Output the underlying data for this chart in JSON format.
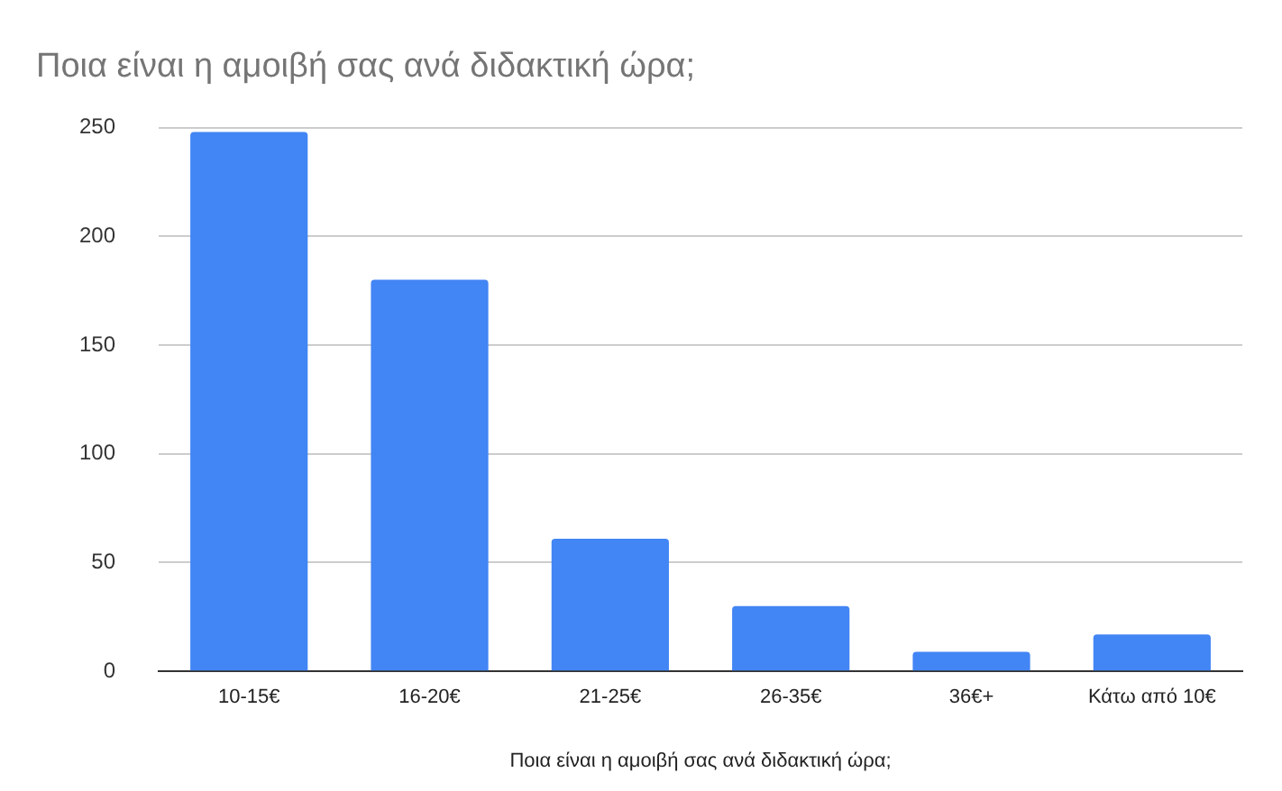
{
  "chart_data": {
    "type": "bar",
    "title": "Ποια είναι η αμοιβή σας ανά διδακτική ώρα;",
    "xlabel": "Ποια είναι η αμοιβή σας ανά διδακτική ώρα;",
    "categories": [
      "10-15€",
      "16-20€",
      "21-25€",
      "26-35€",
      "36€+",
      "Κάτω από 10€"
    ],
    "values": [
      248,
      180,
      61,
      30,
      9,
      17
    ],
    "color": "#4285f4",
    "ylim": [
      0,
      250
    ],
    "yticks": [
      0,
      50,
      100,
      150,
      200,
      250
    ],
    "grid": "y"
  }
}
